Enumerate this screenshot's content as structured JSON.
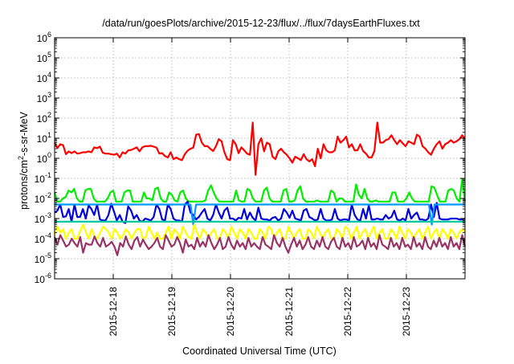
{
  "chart_data": {
    "type": "line",
    "title": "/data/run/goesPlots/archive/2015-12-23/flux/../flux/7daysEarthFluxes.txt",
    "xlabel": "Coordinated Universal Time (UTC)",
    "ylabel": {
      "base": "protons/cm",
      "sup": "2",
      "rest": "-s-sr-MeV"
    },
    "x_range_days": [
      0,
      7.0
    ],
    "x_ticks": [
      {
        "label": "2015-12-18",
        "day": 1
      },
      {
        "label": "2015-12-19",
        "day": 2
      },
      {
        "label": "2015-12-20",
        "day": 3
      },
      {
        "label": "2015-12-21",
        "day": 4
      },
      {
        "label": "2015-12-22",
        "day": 5
      },
      {
        "label": "2015-12-23",
        "day": 6
      }
    ],
    "y_scale": "log",
    "y_ticks": [
      -6,
      -5,
      -4,
      -3,
      -2,
      -1,
      0,
      1,
      2,
      3,
      4,
      5,
      6
    ],
    "ylim_exp": [
      -6,
      6
    ],
    "grid": true,
    "series": [
      {
        "color": "#ff0000",
        "values": [
          6,
          3.2,
          5,
          4.5,
          1.6,
          2.2,
          1.8,
          2.2,
          1.7,
          1.8,
          2,
          2,
          2.2,
          2,
          3.5,
          3.2,
          3.8,
          1.9,
          1.7,
          1.7,
          1.6,
          1.5,
          1.7,
          1.1,
          2,
          1.7,
          2.5,
          2.6,
          3,
          3.5,
          2.2,
          3.5,
          4,
          4,
          4.2,
          3.8,
          3.4,
          1.7,
          1.8,
          1.3,
          1.1,
          2,
          0.9,
          1.1,
          0.9,
          0.8,
          1.6,
          2.4,
          3,
          3.4,
          15,
          16,
          6,
          4,
          4,
          3,
          2.3,
          4,
          9,
          7,
          2,
          0.9,
          0.8,
          8,
          5,
          1.8,
          3.5,
          2.5,
          1.7,
          1.5,
          60,
          0.15,
          5,
          10,
          2.2,
          6,
          5,
          1.2,
          0.9,
          2.2,
          3,
          2,
          1.5,
          1,
          0.6,
          1.2,
          1,
          0.8,
          1.6,
          0.9,
          0.7,
          0.9,
          0.4,
          3,
          1,
          5,
          2.5,
          2,
          2,
          2.5,
          12,
          6,
          8,
          12,
          3.5,
          5,
          2.5,
          2.5,
          5,
          2.3,
          1.7,
          1.1,
          1.1,
          2.3,
          60,
          6,
          6,
          8,
          9,
          14,
          8,
          5,
          8,
          5.5,
          4,
          7,
          6,
          5,
          15,
          12,
          4,
          3,
          2,
          1.5,
          3,
          5,
          7,
          3,
          5,
          6,
          8,
          6,
          7,
          9,
          14,
          9
        ]
      },
      {
        "color": "#00ee00",
        "values": [
          0.02,
          0.007,
          0.007,
          0.01,
          0.012,
          0.025,
          0.02,
          0.03,
          0.01,
          0.007,
          0.007,
          0.025,
          0.03,
          0.03,
          0.01,
          0.007,
          0.007,
          0.007,
          0.007,
          0.01,
          0.02,
          0.025,
          0.007,
          0.007,
          0.007,
          0.02,
          0.025,
          0.025,
          0.007,
          0.007,
          0.007,
          0.007,
          0.02,
          0.01,
          0.01,
          0.008,
          0.03,
          0.035,
          0.01,
          0.007,
          0.007,
          0.02,
          0.015,
          0.008,
          0.007,
          0.02,
          0.025,
          0.01,
          0.007,
          0.007,
          0.007,
          0.007,
          0.007,
          0.007,
          0.008,
          0.025,
          0.045,
          0.02,
          0.01,
          0.007,
          0.007,
          0.007,
          0.007,
          0.007,
          0.007,
          0.025,
          0.008,
          0.007,
          0.007,
          0.03,
          0.025,
          0.01,
          0.007,
          0.007,
          0.007,
          0.025,
          0.035,
          0.01,
          0.007,
          0.007,
          0.007,
          0.007,
          0.025,
          0.03,
          0.007,
          0.007,
          0.008,
          0.025,
          0.04,
          0.01,
          0.007,
          0.007,
          0.007,
          0.007,
          0.008,
          0.007,
          0.007,
          0.007,
          0.007,
          0.025,
          0.02,
          0.007,
          0.01,
          0.01,
          0.007,
          0.007,
          0.007,
          0.007,
          0.05,
          0.015,
          0.01,
          0.03,
          0.01,
          0.007,
          0.007,
          0.008,
          0.007,
          0.007,
          0.007,
          0.007,
          0.007,
          0.02,
          0.02,
          0.007,
          0.007,
          0.007,
          0.01,
          0.02,
          0.01,
          0.007,
          0.007,
          0.007,
          0.007,
          0.007,
          0.007,
          0.04,
          0.035,
          0.015,
          0.007,
          0.007,
          0.007,
          0.025,
          0.03,
          0.025,
          0.01,
          0.007,
          0.09,
          0.007
        ]
      },
      {
        "color": "#0000dd",
        "values": [
          0.002,
          0.0025,
          0.005,
          0.0012,
          0.0013,
          0.003,
          0.0007,
          0.005,
          0.0012,
          0.0012,
          0.003,
          0.001,
          0.0045,
          0.003,
          0.0015,
          0.005,
          0.0009,
          0.0008,
          0.0008,
          0.0015,
          0.0055,
          0.0022,
          0.0008,
          0.0015,
          0.0007,
          0.0006,
          0.004,
          0.0025,
          0.001,
          0.0015,
          0.0008,
          0.0007,
          0.001,
          0.0009,
          0.0008,
          0.0012,
          0.005,
          0.003,
          0.0009,
          0.0008,
          0.005,
          0.003,
          0.001,
          0.0008,
          0.0008,
          0.0007,
          0.005,
          0.007,
          0.002,
          0.0015,
          0.0009,
          0.0012,
          0.002,
          0.003,
          0.001,
          0.0008,
          0.0015,
          0.005,
          0.002,
          0.001,
          0.0025,
          0.0035,
          0.001,
          0.001,
          0.0008,
          0.0011,
          0.001,
          0.003,
          0.0009,
          0.002,
          0.0011,
          0.0008,
          0.0035,
          0.001,
          0.0009,
          0.0009,
          0.0008,
          0.0011,
          0.0012,
          0.0008,
          0.001,
          0.003,
          0.002,
          0.0011,
          0.0025,
          0.001,
          0.0009,
          0.0008,
          0.0025,
          0.003,
          0.0012,
          0.001,
          0.0008,
          0.0009,
          0.003,
          0.001,
          0.0008,
          0.0008,
          0.0009,
          0.003,
          0.001,
          0.0008,
          0.0009,
          0.0009,
          0.0008,
          0.005,
          0.0015,
          0.0009,
          0.0008,
          0.003,
          0.001,
          0.0045,
          0.0009,
          0.0009,
          0.001,
          0.0009,
          0.0009,
          0.0015,
          0.001,
          0.0012,
          0.0025,
          0.0009,
          0.0008,
          0.001,
          0.0008,
          0.003,
          0.001,
          0.0015,
          0.002,
          0.0009,
          0.0009,
          0.0008,
          0.001,
          0.005,
          0.0012,
          0.006,
          0.001,
          0.0009,
          0.0009,
          0.0009,
          0.001,
          0.001,
          0.001,
          0.0009,
          0.0009,
          0.001
        ]
      },
      {
        "color": "#0099ff",
        "values": [
          0.005,
          0.005,
          0.005,
          0.005,
          0.005,
          0.005,
          0.005,
          0.005,
          0.005,
          0.005,
          0.005,
          0.005,
          0.005,
          0.005,
          0.005,
          0.005,
          0.005,
          0.005,
          0.005,
          0.005,
          0.005,
          0.005,
          0.005,
          0.005,
          0.005,
          0.005,
          0.005,
          0.005,
          0.005,
          0.005,
          0.005,
          0.005,
          0.005,
          0.005,
          0.005,
          0.005,
          0.005,
          0.005,
          0.005,
          0.005,
          0.005,
          0.005,
          0.005,
          0.005,
          0.005,
          0.005,
          0.005,
          0.005,
          0.005,
          0.005,
          0.0005,
          0.005,
          0.005,
          0.005,
          0.005,
          0.005,
          0.005,
          0.005,
          0.005,
          0.005,
          0.005,
          0.005,
          0.005,
          0.005,
          0.005,
          0.005,
          0.005,
          0.005,
          0.005,
          0.005,
          0.005,
          0.005,
          0.005,
          0.005,
          0.005,
          0.005,
          0.005,
          0.005,
          0.005,
          0.005,
          0.005,
          0.005,
          0.005,
          0.005,
          0.005,
          0.005,
          0.005,
          0.005,
          0.005,
          0.005,
          0.005,
          0.005,
          0.005,
          0.005,
          0.005,
          0.005,
          0.005,
          0.005,
          0.005,
          0.005,
          0.005,
          0.005,
          0.005,
          0.005,
          0.005,
          0.005,
          0.005,
          0.005,
          0.005,
          0.005,
          0.005,
          0.005,
          0.005,
          0.005,
          0.005,
          0.005,
          0.005,
          0.005,
          0.005,
          0.005,
          0.005,
          0.005,
          0.005,
          0.005,
          0.005,
          0.005,
          0.005,
          0.005,
          0.005,
          0.005,
          0.005,
          0.005,
          0.005,
          0.005,
          0.005,
          0.005,
          0.0005,
          0.005,
          0.005,
          0.005,
          0.005,
          0.005,
          0.005,
          0.005,
          0.005,
          0.005,
          0.005,
          0.005,
          0.005
        ]
      },
      {
        "color": "#00c8a0",
        "values": [
          0.0007,
          0.0007,
          0.0007,
          0.0007,
          0.0007,
          0.0007,
          0.0007,
          0.0007,
          0.0007,
          0.0007,
          0.0007,
          0.0007,
          0.0007,
          0.0007,
          0.0007,
          0.0007,
          0.0007,
          0.0007,
          0.0007,
          0.0007,
          0.0007,
          0.0007,
          0.0007,
          0.0007,
          0.0007,
          0.0007,
          0.0007,
          0.0007,
          0.0007,
          0.0007,
          0.0007,
          0.0007,
          0.0007,
          0.0007,
          0.0007,
          0.0007,
          0.0007,
          0.0007,
          0.0007,
          0.0007,
          0.0007,
          0.0007,
          0.0007,
          0.0007,
          0.0007,
          0.0007,
          0.0007,
          0.0007,
          0.0007,
          0.0007,
          0.0007,
          0.0007,
          0.0007,
          0.0007,
          0.0007,
          0.0007,
          0.0007,
          0.0007,
          0.0007,
          0.0007,
          0.0007,
          0.0007,
          0.0007,
          0.0007,
          0.0007,
          0.0007,
          0.0007,
          0.0007,
          0.0007,
          0.0007,
          0.0007,
          0.0007,
          0.0007,
          0.0007,
          0.0007,
          0.0007,
          0.0007,
          0.0007,
          0.0007,
          0.0007,
          0.0007,
          0.0007,
          0.0007,
          0.0007,
          0.0007,
          0.0007,
          0.0007,
          0.0007,
          0.0007,
          0.0007,
          0.0007,
          0.0007,
          0.0007,
          0.0007,
          0.0007,
          0.0007,
          0.0007,
          0.0007,
          0.0007,
          0.0007,
          0.0007,
          0.0007,
          0.0007,
          0.0007,
          0.0007,
          0.0007,
          0.0007,
          0.0007,
          0.0007,
          0.0007,
          0.0007,
          0.0007,
          0.0007,
          0.0007,
          0.0007,
          0.0007,
          0.0007,
          0.0007,
          0.0007,
          0.0007,
          0.0007,
          0.0007,
          0.0007,
          0.0007,
          0.0007,
          0.0007,
          0.0007,
          0.0007,
          0.0007,
          0.0007,
          0.0007,
          0.0007,
          0.0007,
          0.0007,
          0.0007,
          0.0007,
          0.0007,
          0.0007,
          0.0007,
          0.0007,
          0.0007,
          0.0007,
          0.0007,
          0.0007,
          0.0007,
          0.0007
        ]
      },
      {
        "color": "#ffff00",
        "values": [
          0.00015,
          0.0004,
          0.0002,
          0.0003,
          0.0001,
          0.0002,
          0.0003,
          0.0001,
          0.0001,
          0.00025,
          0.0005,
          0.0002,
          0.0001,
          0.0003,
          0.00012,
          0.0001,
          0.0002,
          0.0004,
          0.0003,
          0.0002,
          0.0001,
          0.0003,
          0.0002,
          0.0001,
          0.00015,
          0.0003,
          0.0002,
          0.0001,
          0.0002,
          0.0003,
          0.0003,
          0.0001,
          0.00012,
          0.0004,
          0.0002,
          0.0001,
          0.0002,
          0.0001,
          0.0001,
          0.0002,
          0.0004,
          0.0001,
          0.0003,
          0.0002,
          0.0001,
          0.0004,
          0.0002,
          0.00012,
          0.0001,
          0.0005,
          0.0002,
          0.0001,
          0.0003,
          0.0002,
          0.0001,
          0.0002,
          0.0003,
          0.0001,
          0.0001,
          0.0003,
          0.0002,
          0.0001,
          0.0004,
          0.0002,
          0.0001,
          0.0003,
          0.0002,
          0.0001,
          0.0003,
          0.0002,
          0.0001,
          0.0001,
          0.0003,
          0.0002,
          0.0001,
          0.0004,
          0.0003,
          0.0001,
          0.0002,
          0.0003,
          0.0001,
          0.0001,
          0.0004,
          0.0002,
          0.0001,
          0.0002,
          0.0003,
          0.0001,
          0.0001,
          0.0003,
          0.0002,
          0.0001,
          0.0004,
          0.0002,
          0.0001,
          0.0002,
          0.0003,
          0.0001,
          0.0001,
          0.0003,
          0.0002,
          0.0001,
          0.0004,
          0.0003,
          0.0001,
          0.0002,
          0.0004,
          0.0001,
          0.0002,
          0.0003,
          0.0001,
          0.0002,
          0.0004,
          0.0001,
          0.0002,
          0.0003,
          0.0001,
          0.0001,
          0.0003,
          0.0002,
          0.0001,
          0.0004,
          0.0002,
          0.0001,
          0.0003,
          0.0002,
          0.0001,
          0.0002,
          0.0003,
          0.0001,
          0.0002,
          0.0004,
          0.0001,
          0.0002,
          0.0003,
          0.0001,
          0.0003,
          0.0002,
          0.0001,
          0.0003,
          0.0002,
          0.0001,
          0.0002,
          0.0003,
          0.0002
        ]
      },
      {
        "color": "#993366",
        "values": [
          0.00012,
          5e-05,
          0.00015,
          8e-05,
          4e-05,
          5e-05,
          0.0001,
          6e-05,
          4e-05,
          0.00012,
          2e-05,
          6e-05,
          5e-05,
          5e-05,
          0.00013,
          6e-05,
          4e-05,
          0.00011,
          4e-05,
          5e-05,
          7e-05,
          4e-05,
          1.5e-05,
          6e-05,
          4e-05,
          0.00013,
          5e-05,
          3e-05,
          8e-05,
          0.00012,
          4e-05,
          9e-05,
          5e-05,
          3e-05,
          4e-05,
          6e-05,
          0.00011,
          4e-05,
          3e-05,
          0.00015,
          8e-05,
          4e-05,
          5e-05,
          0.00012,
          6e-05,
          2e-05,
          9e-05,
          4e-05,
          5e-05,
          3e-05,
          0.00011,
          4e-05,
          7e-05,
          4e-05,
          0.00015,
          6e-05,
          3e-05,
          5e-05,
          0.00011,
          3e-05,
          4e-05,
          0.00012,
          5e-05,
          3e-05,
          8e-05,
          4e-05,
          6e-05,
          3e-05,
          0.00011,
          4e-05,
          6e-05,
          4e-05,
          3e-05,
          0.00012,
          5e-05,
          4e-05,
          3e-05,
          0.00015,
          6e-05,
          4e-05,
          0.00011,
          4e-05,
          2e-05,
          5e-05,
          0.00011,
          4e-05,
          8e-05,
          3e-05,
          5e-05,
          0.00012,
          4e-05,
          3e-05,
          8e-05,
          4e-05,
          0.00012,
          4e-05,
          3e-05,
          7e-05,
          0.00011,
          4e-05,
          3e-05,
          0.00011,
          4e-05,
          6e-05,
          3e-05,
          0.00012,
          4e-05,
          5e-05,
          8e-05,
          3e-05,
          0.00011,
          4e-05,
          6e-05,
          3e-05,
          0.00015,
          5e-05,
          4e-05,
          3e-05,
          0.00011,
          4e-05,
          6e-05,
          3e-05,
          0.00011,
          4e-05,
          5e-05,
          3e-05,
          0.00012,
          4e-05,
          6e-05,
          3e-05,
          0.00012,
          4e-05,
          3e-05,
          8e-05,
          4e-05,
          0.00011,
          4e-05,
          6e-05,
          3e-05,
          0.00012,
          4e-05,
          6e-05,
          3e-05,
          0.00015,
          4e-05
        ]
      }
    ]
  }
}
